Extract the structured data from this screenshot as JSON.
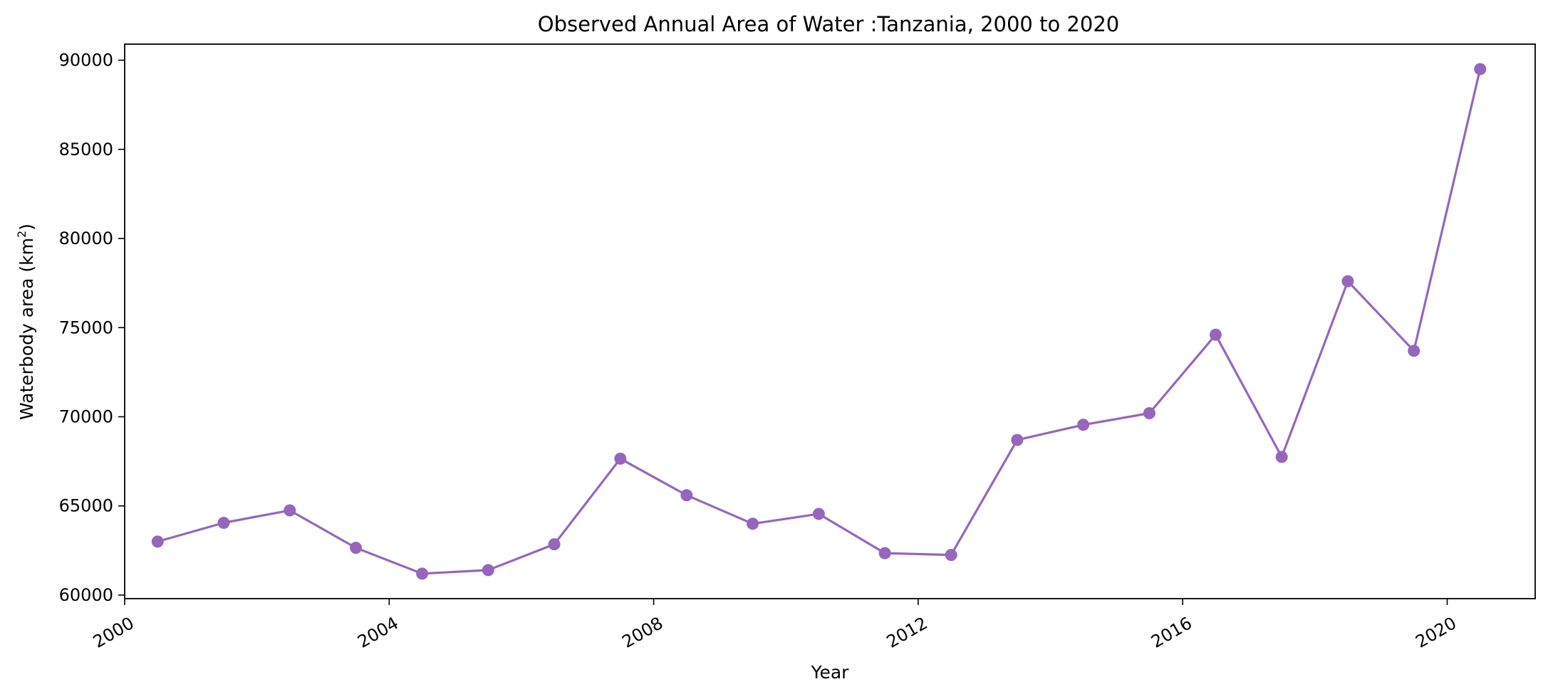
{
  "chart_data": {
    "type": "line",
    "title": "Observed Annual Area of Water :Tanzania, 2000 to 2020",
    "xlabel": "Year",
    "ylabel_prefix": "Waterbody area (km",
    "ylabel_sup": "2",
    "ylabel_suffix": ")",
    "xlim": [
      "2000-01-01",
      "2021-05-01"
    ],
    "ylim": [
      59800,
      90900
    ],
    "x_ticks": [
      "2000",
      "2004",
      "2008",
      "2012",
      "2016",
      "2020"
    ],
    "y_ticks": [
      "60000",
      "65000",
      "70000",
      "75000",
      "80000",
      "85000",
      "90000"
    ],
    "grid": false,
    "legend": "none",
    "color": "#9467bd",
    "series": [
      {
        "x": [
          "2000-07-01",
          "2001-07-01",
          "2002-07-01",
          "2003-07-01",
          "2004-07-01",
          "2005-07-01",
          "2006-07-01",
          "2007-07-01",
          "2008-07-01",
          "2009-07-01",
          "2010-07-01",
          "2011-07-01",
          "2012-07-01",
          "2013-07-01",
          "2014-07-01",
          "2015-07-01",
          "2016-07-01",
          "2017-07-01",
          "2018-07-01",
          "2019-07-01",
          "2020-07-01"
        ],
        "values": [
          63000,
          64050,
          64750,
          62650,
          61200,
          61400,
          62850,
          67650,
          65600,
          64000,
          64550,
          62350,
          62250,
          68700,
          69550,
          70200,
          74600,
          67750,
          77600,
          73700,
          89500
        ]
      }
    ]
  }
}
